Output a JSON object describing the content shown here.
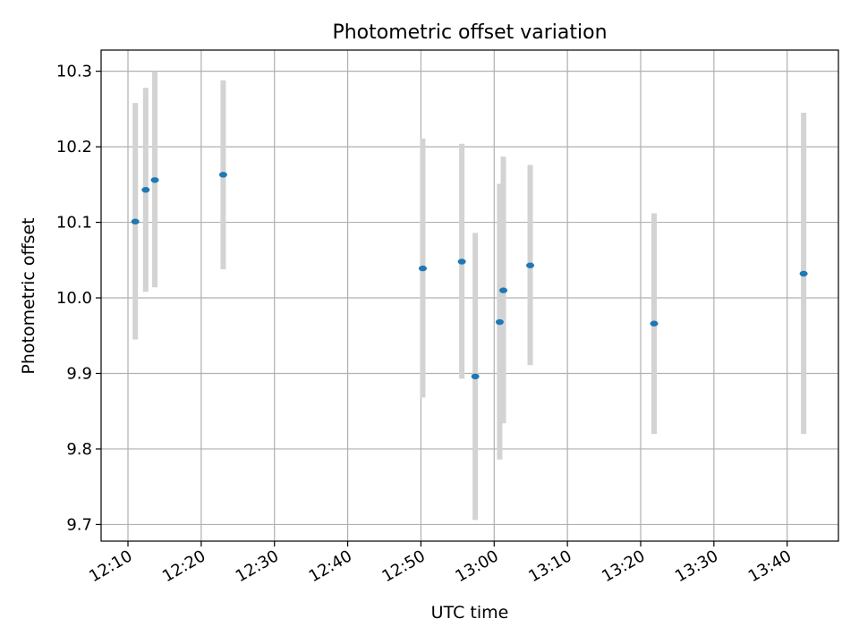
{
  "chart_data": {
    "type": "scatter",
    "title": "Photometric offset variation",
    "xlabel": "UTC time",
    "ylabel": "Photometric offset",
    "x_unit": "UTC time of day",
    "xlim": [
      "12:06:20",
      "13:47:00"
    ],
    "ylim": [
      9.678,
      10.328
    ],
    "x_ticks": [
      "12:10",
      "12:20",
      "12:30",
      "12:40",
      "12:50",
      "13:00",
      "13:10",
      "13:20",
      "13:30",
      "13:40"
    ],
    "y_ticks": [
      "9.7",
      "9.8",
      "9.9",
      "10.0",
      "10.1",
      "10.2",
      "10.3"
    ],
    "grid": true,
    "legend": "none",
    "marker_color": "#1f77b4",
    "errorbar_color": "#d3d3d3",
    "series": [
      {
        "points": [
          {
            "x": "12:11:00",
            "y": 10.101,
            "ylow": 9.945,
            "yhigh": 10.258
          },
          {
            "x": "12:12:25",
            "y": 10.143,
            "ylow": 10.008,
            "yhigh": 10.278
          },
          {
            "x": "12:13:40",
            "y": 10.156,
            "ylow": 10.014,
            "yhigh": 10.3
          },
          {
            "x": "12:23:00",
            "y": 10.163,
            "ylow": 10.038,
            "yhigh": 10.288
          },
          {
            "x": "12:50:15",
            "y": 10.039,
            "ylow": 9.868,
            "yhigh": 10.211
          },
          {
            "x": "12:55:35",
            "y": 10.048,
            "ylow": 9.893,
            "yhigh": 10.204
          },
          {
            "x": "12:57:25",
            "y": 9.896,
            "ylow": 9.706,
            "yhigh": 10.086
          },
          {
            "x": "13:00:45",
            "y": 9.968,
            "ylow": 9.786,
            "yhigh": 10.151
          },
          {
            "x": "13:01:15",
            "y": 10.01,
            "ylow": 9.834,
            "yhigh": 10.187
          },
          {
            "x": "13:04:55",
            "y": 10.043,
            "ylow": 9.911,
            "yhigh": 10.176
          },
          {
            "x": "13:21:50",
            "y": 9.966,
            "ylow": 9.82,
            "yhigh": 10.112
          },
          {
            "x": "13:42:15",
            "y": 10.032,
            "ylow": 9.82,
            "yhigh": 10.245
          }
        ]
      }
    ]
  }
}
